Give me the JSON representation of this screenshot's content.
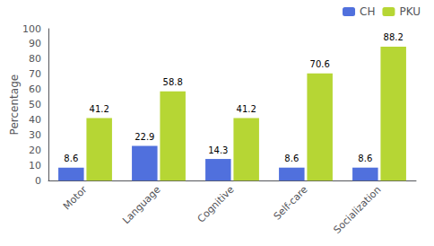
{
  "chart_data": {
    "type": "bar",
    "categories": [
      "Motor",
      "Language",
      "Cognitive",
      "Self-care",
      "Socialization"
    ],
    "series": [
      {
        "name": "CH",
        "values": [
          8.6,
          22.9,
          14.3,
          8.6,
          8.6
        ]
      },
      {
        "name": "PKU",
        "values": [
          41.2,
          58.8,
          41.2,
          70.6,
          88.2
        ]
      }
    ],
    "ylabel": "Percentage",
    "ylim": [
      0,
      100
    ],
    "yticks": [
      0,
      10,
      20,
      30,
      40,
      50,
      60,
      70,
      80,
      90,
      100
    ],
    "grid": false,
    "legend": "upper right",
    "data_labels": true
  }
}
